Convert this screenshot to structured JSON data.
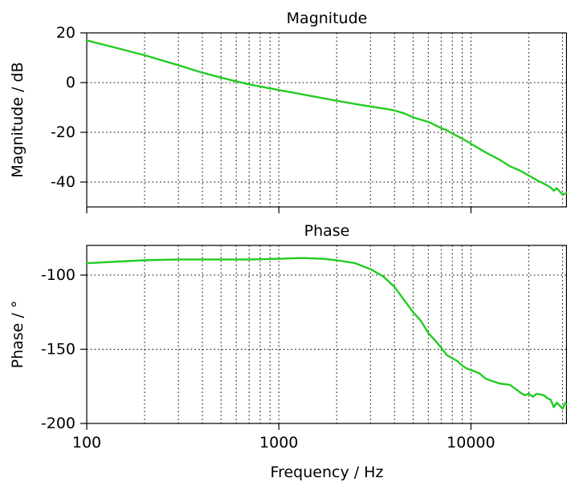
{
  "chart_data": [
    {
      "type": "line",
      "title": "Magnitude",
      "ylabel": "Magnitude / dB",
      "xlabel": "",
      "xscale": "log",
      "xlim": [
        100,
        31623
      ],
      "ylim": [
        -50,
        20
      ],
      "yticks": [
        20,
        0,
        -20,
        -40
      ],
      "ytick_labels": [
        "20",
        "0",
        "-20",
        "-40"
      ],
      "xticks": [
        100,
        1000,
        10000
      ],
      "xtick_labels": [],
      "grid": true,
      "color": "#22cc22",
      "series": [
        {
          "x": [
            100,
            150,
            200,
            300,
            400,
            500,
            600,
            700,
            800,
            1000,
            1200,
            1500,
            2000,
            2500,
            3000,
            3500,
            4000,
            4500,
            5000,
            6000,
            7000,
            7500,
            8000,
            9000,
            10000,
            12000,
            14000,
            16000,
            18000,
            20000,
            22000,
            25000,
            26000,
            27000,
            28000,
            29000,
            30000,
            31623
          ],
          "y": [
            17,
            13.5,
            11,
            7,
            4,
            2,
            0.5,
            -0.7,
            -1.6,
            -3,
            -4.1,
            -5.5,
            -7.3,
            -8.6,
            -9.6,
            -10.4,
            -11.2,
            -12.4,
            -14,
            -15.8,
            -18.3,
            -19.2,
            -20.5,
            -22.5,
            -24.6,
            -28.2,
            -30.9,
            -33.7,
            -35.4,
            -37.4,
            -39.2,
            -41.4,
            -42.2,
            -43.5,
            -42.5,
            -43.8,
            -45,
            -44.5
          ]
        }
      ]
    },
    {
      "type": "line",
      "title": "Phase",
      "ylabel": "Phase / °",
      "xlabel": "Frequency / Hz",
      "xscale": "log",
      "xlim": [
        100,
        31623
      ],
      "ylim": [
        -200,
        -80
      ],
      "yticks": [
        -100,
        -150,
        -200
      ],
      "ytick_labels": [
        "-100",
        "-150",
        "-200"
      ],
      "xticks": [
        100,
        1000,
        10000
      ],
      "xtick_labels": [
        "100",
        "1000",
        "10000"
      ],
      "grid": true,
      "color": "#22cc22",
      "series": [
        {
          "x": [
            100,
            200,
            300,
            500,
            700,
            1000,
            1300,
            1700,
            2000,
            2500,
            3000,
            3500,
            4000,
            4500,
            5000,
            5500,
            6000,
            6500,
            7000,
            7500,
            8000,
            8500,
            9000,
            9500,
            10000,
            11000,
            12000,
            14000,
            16000,
            18000,
            19000,
            20000,
            21000,
            22000,
            24000,
            25000,
            26000,
            27000,
            28000,
            29000,
            30000,
            31000,
            31623
          ],
          "y": [
            -92,
            -90,
            -89.5,
            -89.5,
            -89.5,
            -89,
            -88.5,
            -89,
            -90,
            -92,
            -96,
            -101,
            -108,
            -117,
            -125,
            -131,
            -139,
            -144,
            -149,
            -154,
            -156,
            -158,
            -161,
            -163,
            -164,
            -166,
            -170,
            -173,
            -174,
            -179,
            -181,
            -180,
            -182,
            -180,
            -181,
            -183,
            -184,
            -189,
            -186,
            -188,
            -190,
            -186,
            -187
          ]
        }
      ]
    }
  ]
}
